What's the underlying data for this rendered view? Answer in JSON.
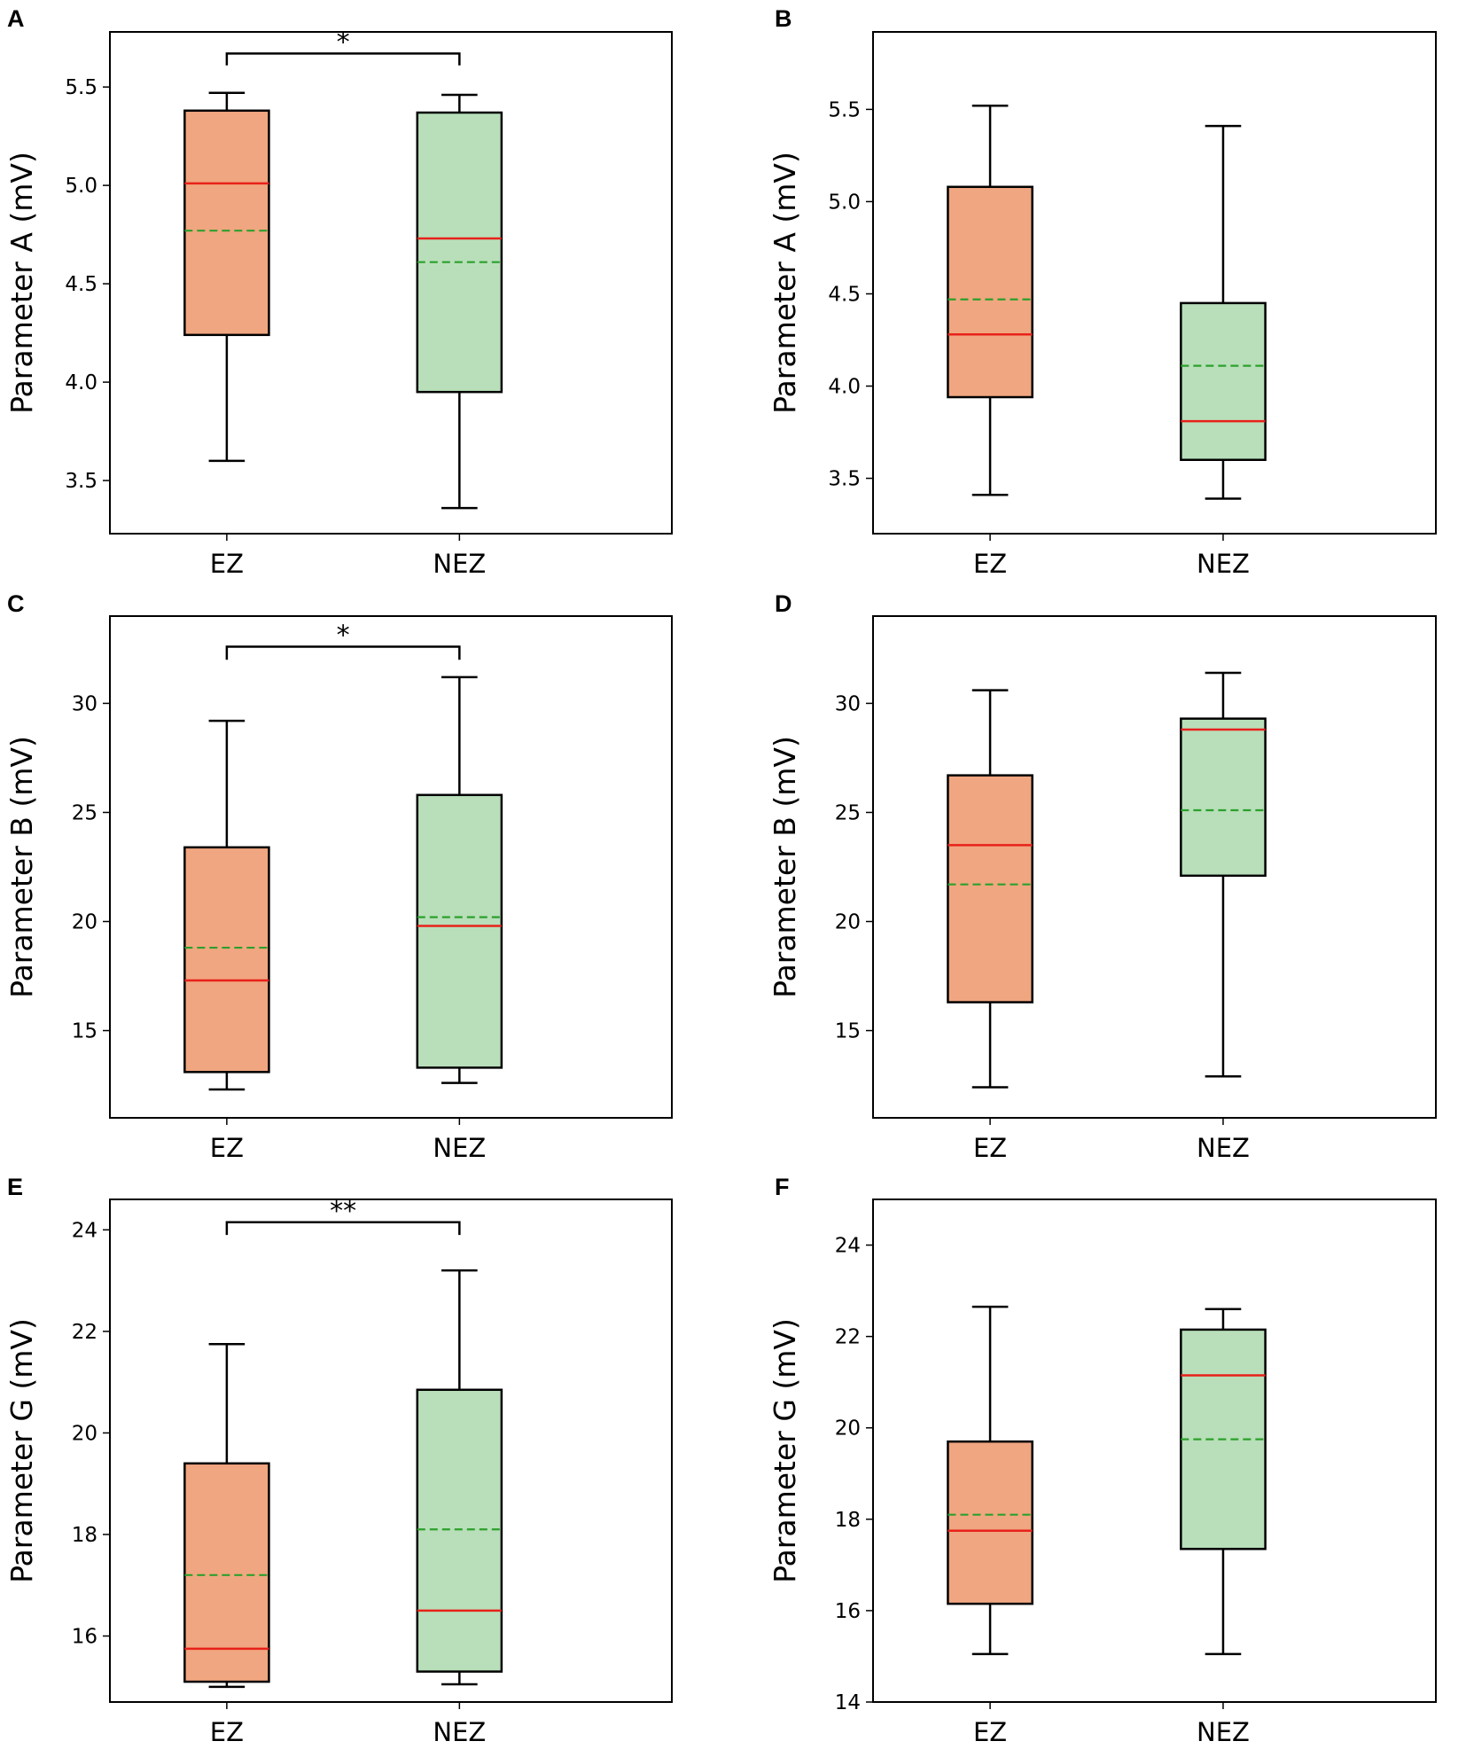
{
  "colors": {
    "ez_fill": "#f0a680",
    "nez_fill": "#b8dfb9",
    "median": "#e8211a",
    "mean": "#2ca02c",
    "line": "#000000"
  },
  "chart_data": [
    {
      "panel": "A",
      "type": "box",
      "ylabel": "Parameter A (mV)",
      "categories": [
        "EZ",
        "NEZ"
      ],
      "ylim": [
        3.23,
        5.78
      ],
      "yticks": [
        3.5,
        4.0,
        4.5,
        5.0,
        5.5
      ],
      "ytick_labels": [
        "3.5",
        "4.0",
        "4.5",
        "5.0",
        "5.5"
      ],
      "boxes": [
        {
          "name": "EZ",
          "whisker_low": 3.6,
          "q1": 4.24,
          "median": 5.01,
          "mean": 4.77,
          "q3": 5.38,
          "whisker_high": 5.47
        },
        {
          "name": "NEZ",
          "whisker_low": 3.36,
          "q1": 3.95,
          "median": 4.73,
          "mean": 4.61,
          "q3": 5.37,
          "whisker_high": 5.46
        }
      ],
      "significance": {
        "label": "*",
        "y": 5.67,
        "drop": 0.06
      }
    },
    {
      "panel": "B",
      "type": "box",
      "ylabel": "Parameter A (mV)",
      "categories": [
        "EZ",
        "NEZ"
      ],
      "ylim": [
        3.2,
        5.92
      ],
      "yticks": [
        3.5,
        4.0,
        4.5,
        5.0,
        5.5
      ],
      "ytick_labels": [
        "3.5",
        "4.0",
        "4.5",
        "5.0",
        "5.5"
      ],
      "boxes": [
        {
          "name": "EZ",
          "whisker_low": 3.41,
          "q1": 3.94,
          "median": 4.28,
          "mean": 4.47,
          "q3": 5.08,
          "whisker_high": 5.52
        },
        {
          "name": "NEZ",
          "whisker_low": 3.39,
          "q1": 3.6,
          "median": 3.81,
          "mean": 4.11,
          "q3": 4.45,
          "whisker_high": 5.41
        }
      ]
    },
    {
      "panel": "C",
      "type": "box",
      "ylabel": "Parameter B (mV)",
      "categories": [
        "EZ",
        "NEZ"
      ],
      "ylim": [
        11.0,
        34.0
      ],
      "yticks": [
        15,
        20,
        25,
        30
      ],
      "ytick_labels": [
        "15",
        "20",
        "25",
        "30"
      ],
      "boxes": [
        {
          "name": "EZ",
          "whisker_low": 12.3,
          "q1": 13.1,
          "median": 17.3,
          "mean": 18.8,
          "q3": 23.4,
          "whisker_high": 29.2
        },
        {
          "name": "NEZ",
          "whisker_low": 12.6,
          "q1": 13.3,
          "median": 19.8,
          "mean": 20.2,
          "q3": 25.8,
          "whisker_high": 31.2
        }
      ],
      "significance": {
        "label": "*",
        "y": 32.6,
        "drop": 0.6
      }
    },
    {
      "panel": "D",
      "type": "box",
      "ylabel": "Parameter B (mV)",
      "categories": [
        "EZ",
        "NEZ"
      ],
      "ylim": [
        11.0,
        34.0
      ],
      "yticks": [
        15,
        20,
        25,
        30
      ],
      "ytick_labels": [
        "15",
        "20",
        "25",
        "30"
      ],
      "boxes": [
        {
          "name": "EZ",
          "whisker_low": 12.4,
          "q1": 16.3,
          "median": 23.5,
          "mean": 21.7,
          "q3": 26.7,
          "whisker_high": 30.6
        },
        {
          "name": "NEZ",
          "whisker_low": 12.9,
          "q1": 22.1,
          "median": 28.8,
          "mean": 25.1,
          "q3": 29.3,
          "whisker_high": 31.4
        }
      ]
    },
    {
      "panel": "E",
      "type": "box",
      "ylabel": "Parameter G (mV)",
      "categories": [
        "EZ",
        "NEZ"
      ],
      "ylim": [
        14.7,
        24.6
      ],
      "yticks": [
        16,
        18,
        20,
        22,
        24
      ],
      "ytick_labels": [
        "16",
        "18",
        "20",
        "22",
        "24"
      ],
      "boxes": [
        {
          "name": "EZ",
          "whisker_low": 15.0,
          "q1": 15.1,
          "median": 15.75,
          "mean": 17.2,
          "q3": 19.4,
          "whisker_high": 21.75
        },
        {
          "name": "NEZ",
          "whisker_low": 15.05,
          "q1": 15.3,
          "median": 16.5,
          "mean": 18.1,
          "q3": 20.85,
          "whisker_high": 23.2
        }
      ],
      "significance": {
        "label": "**",
        "y": 24.15,
        "drop": 0.25
      }
    },
    {
      "panel": "F",
      "type": "box",
      "ylabel": "Parameter G (mV)",
      "categories": [
        "EZ",
        "NEZ"
      ],
      "ylim": [
        14.0,
        25.0
      ],
      "yticks": [
        14,
        16,
        18,
        20,
        22,
        24
      ],
      "ytick_labels": [
        "14",
        "16",
        "18",
        "20",
        "22",
        "24"
      ],
      "boxes": [
        {
          "name": "EZ",
          "whisker_low": 15.05,
          "q1": 16.15,
          "median": 17.75,
          "mean": 18.1,
          "q3": 19.7,
          "whisker_high": 22.65
        },
        {
          "name": "NEZ",
          "whisker_low": 15.05,
          "q1": 17.35,
          "median": 21.15,
          "mean": 19.75,
          "q3": 22.15,
          "whisker_high": 22.6
        }
      ]
    }
  ]
}
